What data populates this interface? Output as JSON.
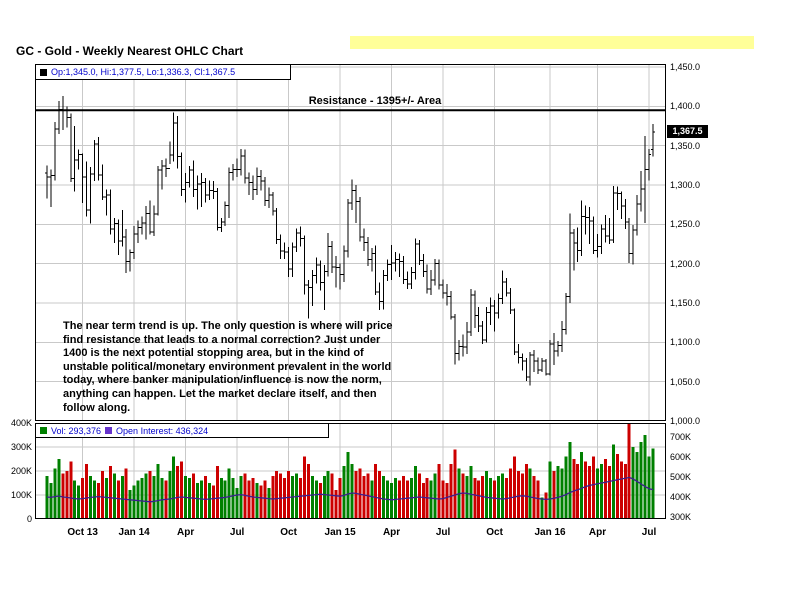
{
  "page": {
    "title": "GC - Gold - Weekly Nearest OHLC Chart"
  },
  "main_chart": {
    "legend_text": "Op:1,345.0, Hi:1,377.5, Lo:1,336.3, Cl:1,367.5",
    "resistance_label": "Resistance - 1395+/- Area",
    "annotation": "The near term trend is up.  The only question is where will price\nfind resistance that leads to a normal correction?  Just  under\n1400 is the next potential stopping area, but in  the kind of\nunstable political/monetary  environment prevalent in the world\ntoday, where banker manipulation/influence is now the norm,\nanything can happen.  Let the market declare itself, and then\nfollow along.",
    "last_price_label": "1,367.5"
  },
  "volume_panel": {
    "vol_label": "Vol: 293,376",
    "oi_label": "Open Interest: 436,324"
  },
  "chart_data": [
    {
      "type": "ohlc",
      "title": "GC - Gold - Weekly Nearest OHLC Chart",
      "timeframe": "weekly",
      "price_axis": {
        "min": 1000,
        "max": 1450,
        "step": 50
      },
      "price_labels": [
        {
          "t": "1,450.0",
          "v": 1450
        },
        {
          "t": "1,400.0",
          "v": 1400
        },
        {
          "t": "1,350.0",
          "v": 1350
        },
        {
          "t": "1,300.0",
          "v": 1300
        },
        {
          "t": "1,250.0",
          "v": 1250
        },
        {
          "t": "1,200.0",
          "v": 1200
        },
        {
          "t": "1,150.0",
          "v": 1150
        },
        {
          "t": "1,100.0",
          "v": 1100
        },
        {
          "t": "1,050.0",
          "v": 1050
        },
        {
          "t": "1,000.0",
          "v": 1000
        }
      ],
      "x_ticks": [
        {
          "label": "Oct 13",
          "i": 9
        },
        {
          "label": "Jan 14",
          "i": 22
        },
        {
          "label": "Apr",
          "i": 35
        },
        {
          "label": "Jul",
          "i": 48
        },
        {
          "label": "Oct",
          "i": 61
        },
        {
          "label": "Jan 15",
          "i": 74
        },
        {
          "label": "Apr",
          "i": 87
        },
        {
          "label": "Jul",
          "i": 100
        },
        {
          "label": "Oct",
          "i": 113
        },
        {
          "label": "Jan 16",
          "i": 127
        },
        {
          "label": "Apr",
          "i": 139
        },
        {
          "label": "Jul",
          "i": 152
        }
      ],
      "resistance": {
        "price": 1395,
        "label": "Resistance - 1395+/- Area"
      },
      "first_open": 1315,
      "last_bar": {
        "open": 1345.0,
        "high": 1377.5,
        "low": 1336.3,
        "close": 1367.5
      },
      "bars_hlc": [
        [
          1325,
          1283,
          1310
        ],
        [
          1320,
          1272,
          1312
        ],
        [
          1380,
          1306,
          1371
        ],
        [
          1407,
          1365,
          1396
        ],
        [
          1413,
          1370,
          1395
        ],
        [
          1400,
          1373,
          1386
        ],
        [
          1391,
          1304,
          1308
        ],
        [
          1375,
          1292,
          1332
        ],
        [
          1345,
          1320,
          1339
        ],
        [
          1340,
          1277,
          1310
        ],
        [
          1330,
          1260,
          1268
        ],
        [
          1323,
          1251,
          1314
        ],
        [
          1357,
          1305,
          1352
        ],
        [
          1361,
          1306,
          1313
        ],
        [
          1326,
          1281,
          1285
        ],
        [
          1294,
          1261,
          1287
        ],
        [
          1294,
          1237,
          1244
        ],
        [
          1258,
          1226,
          1251
        ],
        [
          1256,
          1211,
          1229
        ],
        [
          1268,
          1222,
          1234
        ],
        [
          1244,
          1188,
          1203
        ],
        [
          1218,
          1190,
          1214
        ],
        [
          1248,
          1206,
          1238
        ],
        [
          1255,
          1226,
          1246
        ],
        [
          1260,
          1237,
          1252
        ],
        [
          1273,
          1231,
          1264
        ],
        [
          1280,
          1237,
          1240
        ],
        [
          1274,
          1235,
          1263
        ],
        [
          1324,
          1261,
          1319
        ],
        [
          1332,
          1294,
          1324
        ],
        [
          1334,
          1310,
          1321
        ],
        [
          1355,
          1327,
          1338
        ],
        [
          1392,
          1330,
          1379
        ],
        [
          1388,
          1321,
          1336
        ],
        [
          1341,
          1286,
          1294
        ],
        [
          1315,
          1278,
          1303
        ],
        [
          1324,
          1297,
          1319
        ],
        [
          1331,
          1285,
          1294
        ],
        [
          1312,
          1269,
          1301
        ],
        [
          1315,
          1272,
          1303
        ],
        [
          1309,
          1278,
          1287
        ],
        [
          1306,
          1281,
          1293
        ],
        [
          1305,
          1282,
          1292
        ],
        [
          1296,
          1242,
          1246
        ],
        [
          1258,
          1240,
          1253
        ],
        [
          1279,
          1248,
          1274
        ],
        [
          1322,
          1258,
          1316
        ],
        [
          1327,
          1306,
          1320
        ],
        [
          1334,
          1310,
          1320
        ],
        [
          1346,
          1312,
          1337
        ],
        [
          1345,
          1302,
          1309
        ],
        [
          1316,
          1287,
          1303
        ],
        [
          1312,
          1281,
          1294
        ],
        [
          1322,
          1287,
          1311
        ],
        [
          1319,
          1293,
          1305
        ],
        [
          1310,
          1273,
          1280
        ],
        [
          1297,
          1271,
          1287
        ],
        [
          1291,
          1261,
          1267
        ],
        [
          1271,
          1225,
          1231
        ],
        [
          1237,
          1206,
          1216
        ],
        [
          1227,
          1206,
          1215
        ],
        [
          1221,
          1183,
          1193
        ],
        [
          1227,
          1183,
          1221
        ],
        [
          1245,
          1215,
          1239
        ],
        [
          1247,
          1222,
          1232
        ],
        [
          1236,
          1161,
          1173
        ],
        [
          1179,
          1130,
          1170
        ],
        [
          1192,
          1146,
          1185
        ],
        [
          1208,
          1175,
          1198
        ],
        [
          1204,
          1166,
          1176
        ],
        [
          1198,
          1141,
          1190
        ],
        [
          1239,
          1184,
          1222
        ],
        [
          1229,
          1188,
          1196
        ],
        [
          1210,
          1170,
          1195
        ],
        [
          1200,
          1167,
          1186
        ],
        [
          1223,
          1177,
          1216
        ],
        [
          1282,
          1208,
          1277
        ],
        [
          1307,
          1268,
          1293
        ],
        [
          1300,
          1252,
          1279
        ],
        [
          1285,
          1228,
          1234
        ],
        [
          1245,
          1216,
          1227
        ],
        [
          1234,
          1197,
          1205
        ],
        [
          1220,
          1190,
          1213
        ],
        [
          1223,
          1160,
          1164
        ],
        [
          1176,
          1141,
          1152
        ],
        [
          1192,
          1142,
          1185
        ],
        [
          1205,
          1178,
          1199
        ],
        [
          1224,
          1179,
          1201
        ],
        [
          1215,
          1190,
          1205
        ],
        [
          1213,
          1183,
          1203
        ],
        [
          1210,
          1174,
          1180
        ],
        [
          1190,
          1168,
          1174
        ],
        [
          1196,
          1168,
          1189
        ],
        [
          1232,
          1180,
          1225
        ],
        [
          1230,
          1198,
          1204
        ],
        [
          1212,
          1183,
          1190
        ],
        [
          1199,
          1162,
          1168
        ],
        [
          1192,
          1160,
          1179
        ],
        [
          1206,
          1172,
          1200
        ],
        [
          1205,
          1167,
          1173
        ],
        [
          1180,
          1156,
          1163
        ],
        [
          1174,
          1147,
          1158
        ],
        [
          1165,
          1129,
          1132
        ],
        [
          1136,
          1072,
          1086
        ],
        [
          1103,
          1077,
          1095
        ],
        [
          1110,
          1082,
          1094
        ],
        [
          1126,
          1085,
          1113
        ],
        [
          1168,
          1108,
          1160
        ],
        [
          1166,
          1118,
          1134
        ],
        [
          1145,
          1113,
          1121
        ],
        [
          1127,
          1098,
          1103
        ],
        [
          1145,
          1100,
          1138
        ],
        [
          1157,
          1122,
          1146
        ],
        [
          1154,
          1114,
          1137
        ],
        [
          1162,
          1130,
          1156
        ],
        [
          1191,
          1149,
          1177
        ],
        [
          1182,
          1158,
          1163
        ],
        [
          1169,
          1136,
          1141
        ],
        [
          1143,
          1084,
          1088
        ],
        [
          1098,
          1073,
          1081
        ],
        [
          1086,
          1064,
          1076
        ],
        [
          1080,
          1051,
          1056
        ],
        [
          1088,
          1045,
          1084
        ],
        [
          1090,
          1062,
          1076
        ],
        [
          1081,
          1060,
          1065
        ],
        [
          1080,
          1062,
          1076
        ],
        [
          1079,
          1058,
          1060
        ],
        [
          1103,
          1058,
          1098
        ],
        [
          1112,
          1071,
          1089
        ],
        [
          1102,
          1082,
          1096
        ],
        [
          1127,
          1088,
          1116
        ],
        [
          1163,
          1110,
          1158
        ],
        [
          1264,
          1150,
          1239
        ],
        [
          1244,
          1191,
          1226
        ],
        [
          1246,
          1202,
          1217
        ],
        [
          1280,
          1210,
          1260
        ],
        [
          1274,
          1237,
          1259
        ],
        [
          1272,
          1225,
          1254
        ],
        [
          1260,
          1212,
          1217
        ],
        [
          1238,
          1208,
          1222
        ],
        [
          1250,
          1212,
          1244
        ],
        [
          1262,
          1227,
          1235
        ],
        [
          1258,
          1225,
          1230
        ],
        [
          1299,
          1226,
          1290
        ],
        [
          1298,
          1268,
          1289
        ],
        [
          1292,
          1257,
          1273
        ],
        [
          1282,
          1244,
          1253
        ],
        [
          1258,
          1201,
          1213
        ],
        [
          1249,
          1199,
          1243
        ],
        [
          1287,
          1236,
          1276
        ],
        [
          1318,
          1266,
          1295
        ],
        [
          1362,
          1252,
          1320
        ],
        [
          1346,
          1306,
          1339
        ],
        [
          1377.5,
          1336.3,
          1367.5
        ]
      ]
    },
    {
      "type": "bar+line",
      "title": "Volume / Open Interest",
      "units": "thousands of contracts",
      "left_axis": {
        "min": 0,
        "max": 400
      },
      "right_axis": {
        "min": 300,
        "max": 700
      },
      "left_labels": [
        {
          "t": "400K",
          "v": 400
        },
        {
          "t": "300K",
          "v": 300
        },
        {
          "t": "200K",
          "v": 200
        },
        {
          "t": "100K",
          "v": 100
        },
        {
          "t": "0",
          "v": 0
        }
      ],
      "right_labels": [
        {
          "t": "700K",
          "v": 700
        },
        {
          "t": "600K",
          "v": 600
        },
        {
          "t": "500K",
          "v": 500
        },
        {
          "t": "400K",
          "v": 400
        },
        {
          "t": "300K",
          "v": 300
        }
      ],
      "colors": {
        "up": "#008000",
        "down": "#cc0000",
        "oi": "#3b1e8f",
        "oi_swatch": "#6633cc"
      },
      "series": [
        {
          "name": "Volume"
        },
        {
          "name": "Open Interest"
        }
      ],
      "volume": [
        180,
        150,
        210,
        250,
        190,
        200,
        240,
        160,
        140,
        170,
        230,
        180,
        160,
        150,
        200,
        170,
        220,
        190,
        160,
        180,
        210,
        120,
        140,
        160,
        170,
        190,
        200,
        180,
        230,
        170,
        160,
        200,
        260,
        220,
        240,
        180,
        170,
        190,
        150,
        160,
        180,
        150,
        140,
        220,
        170,
        160,
        210,
        170,
        130,
        180,
        190,
        160,
        170,
        150,
        140,
        160,
        130,
        180,
        200,
        190,
        170,
        200,
        180,
        190,
        170,
        260,
        230,
        180,
        160,
        150,
        180,
        200,
        190,
        120,
        170,
        220,
        280,
        230,
        200,
        210,
        180,
        190,
        160,
        230,
        200,
        180,
        160,
        150,
        170,
        160,
        180,
        160,
        170,
        220,
        190,
        150,
        170,
        160,
        190,
        230,
        160,
        150,
        230,
        290,
        210,
        190,
        180,
        220,
        170,
        160,
        180,
        200,
        170,
        160,
        180,
        190,
        170,
        210,
        260,
        200,
        190,
        230,
        210,
        180,
        160,
        90,
        110,
        240,
        200,
        220,
        210,
        260,
        320,
        250,
        230,
        280,
        240,
        220,
        260,
        210,
        230,
        250,
        220,
        310,
        270,
        240,
        230,
        415,
        300,
        280,
        320,
        350,
        260,
        293
      ],
      "open_interest": [
        400,
        398,
        402,
        405,
        400,
        398,
        395,
        392,
        390,
        392,
        395,
        398,
        400,
        402,
        400,
        398,
        396,
        394,
        392,
        390,
        388,
        386,
        384,
        382,
        380,
        378,
        376,
        378,
        382,
        386,
        388,
        390,
        394,
        398,
        400,
        398,
        396,
        394,
        392,
        390,
        388,
        390,
        392,
        394,
        396,
        398,
        402,
        406,
        410,
        412,
        408,
        404,
        400,
        398,
        396,
        394,
        392,
        390,
        392,
        394,
        396,
        398,
        400,
        402,
        404,
        406,
        408,
        410,
        412,
        414,
        412,
        410,
        408,
        406,
        404,
        408,
        415,
        420,
        418,
        414,
        410,
        406,
        402,
        398,
        394,
        390,
        388,
        386,
        388,
        390,
        392,
        394,
        396,
        398,
        400,
        398,
        396,
        394,
        392,
        390,
        392,
        398,
        404,
        410,
        416,
        420,
        418,
        414,
        410,
        406,
        402,
        398,
        396,
        394,
        392,
        390,
        392,
        396,
        400,
        404,
        406,
        404,
        400,
        396,
        392,
        390,
        388,
        390,
        394,
        398,
        404,
        412,
        422,
        430,
        436,
        444,
        452,
        458,
        462,
        466,
        470,
        474,
        478,
        482,
        486,
        490,
        494,
        498,
        490,
        478,
        465,
        452,
        442,
        436
      ]
    }
  ]
}
